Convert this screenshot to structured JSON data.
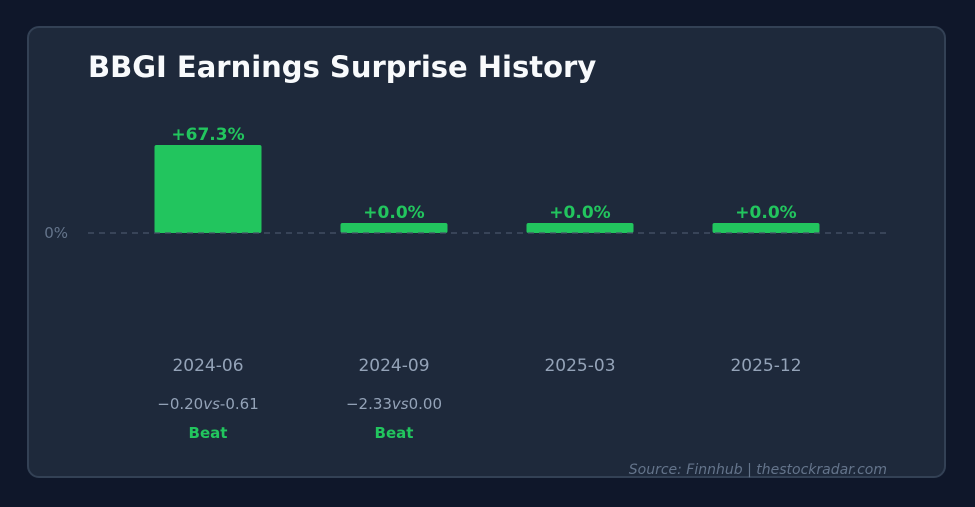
{
  "chart_data": {
    "type": "bar",
    "title": "BBGI Earnings Surprise History",
    "categories": [
      "2024-06",
      "2024-09",
      "2025-03",
      "2025-12"
    ],
    "values": [
      67.3,
      0.0,
      0.0,
      0.0
    ],
    "value_labels": [
      "+67.3%",
      "+0.0%",
      "+0.0%",
      "+0.0%"
    ],
    "eps_labels": [
      {
        "actual": "−0.20",
        "vs": "vs",
        "estimate": "-0.61"
      },
      {
        "actual": "−2.33",
        "vs": "vs",
        "estimate": "0.00"
      },
      null,
      null
    ],
    "results": [
      "Beat",
      "Beat",
      null,
      null
    ],
    "zero_label": "0%",
    "bar_color": "#22c55e",
    "grid": false
  },
  "source": "Source: Finnhub  |  thestockradar.com"
}
